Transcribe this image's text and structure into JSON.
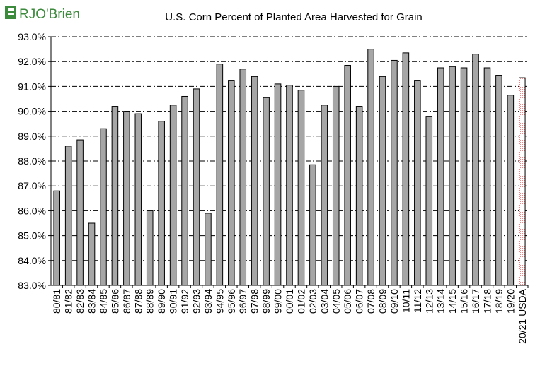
{
  "logo": {
    "text": "RJO'Brien"
  },
  "chart_data": {
    "type": "bar",
    "title": "U.S. Corn Percent of Planted Area Harvested for Grain",
    "xlabel": "",
    "ylabel": "",
    "ylim": [
      83.0,
      93.0
    ],
    "y_ticks": [
      "83.0%",
      "84.0%",
      "85.0%",
      "86.0%",
      "87.0%",
      "88.0%",
      "89.0%",
      "90.0%",
      "91.0%",
      "92.0%",
      "93.0%"
    ],
    "grid": true,
    "legend": "none",
    "categories": [
      "80/81",
      "81/82",
      "82/83",
      "83/84",
      "84/85",
      "85/86",
      "86/87",
      "87/88",
      "88/89",
      "89/90",
      "90/91",
      "91/92",
      "92/93",
      "93/94",
      "94/95",
      "95/96",
      "96/97",
      "97/98",
      "98/99",
      "99/00",
      "00/01",
      "01/02",
      "02/03",
      "03/04",
      "04/05",
      "05/06",
      "06/07",
      "07/08",
      "08/09",
      "09/10",
      "10/11",
      "11/12",
      "12/13",
      "13/14",
      "14/15",
      "15/16",
      "16/17",
      "17/18",
      "18/19",
      "19/20",
      "20/21 USDA"
    ],
    "values": [
      86.8,
      88.6,
      88.85,
      85.5,
      89.3,
      90.2,
      90.0,
      89.9,
      86.0,
      89.6,
      90.25,
      90.6,
      90.9,
      85.9,
      91.9,
      91.25,
      91.7,
      91.4,
      90.55,
      91.1,
      91.05,
      90.85,
      87.85,
      90.25,
      91.0,
      91.85,
      90.2,
      92.5,
      91.4,
      92.05,
      92.35,
      91.25,
      89.8,
      91.75,
      91.8,
      91.75,
      92.3,
      91.75,
      91.45,
      90.65,
      91.35
    ],
    "highlight_index": 40,
    "colors": {
      "bar": "#a6a6a6",
      "bar_stroke": "#000000",
      "highlight_bar": "#ffffff",
      "highlight_hatch": "#ff9999",
      "logo_green": "#3c8a3c"
    }
  }
}
